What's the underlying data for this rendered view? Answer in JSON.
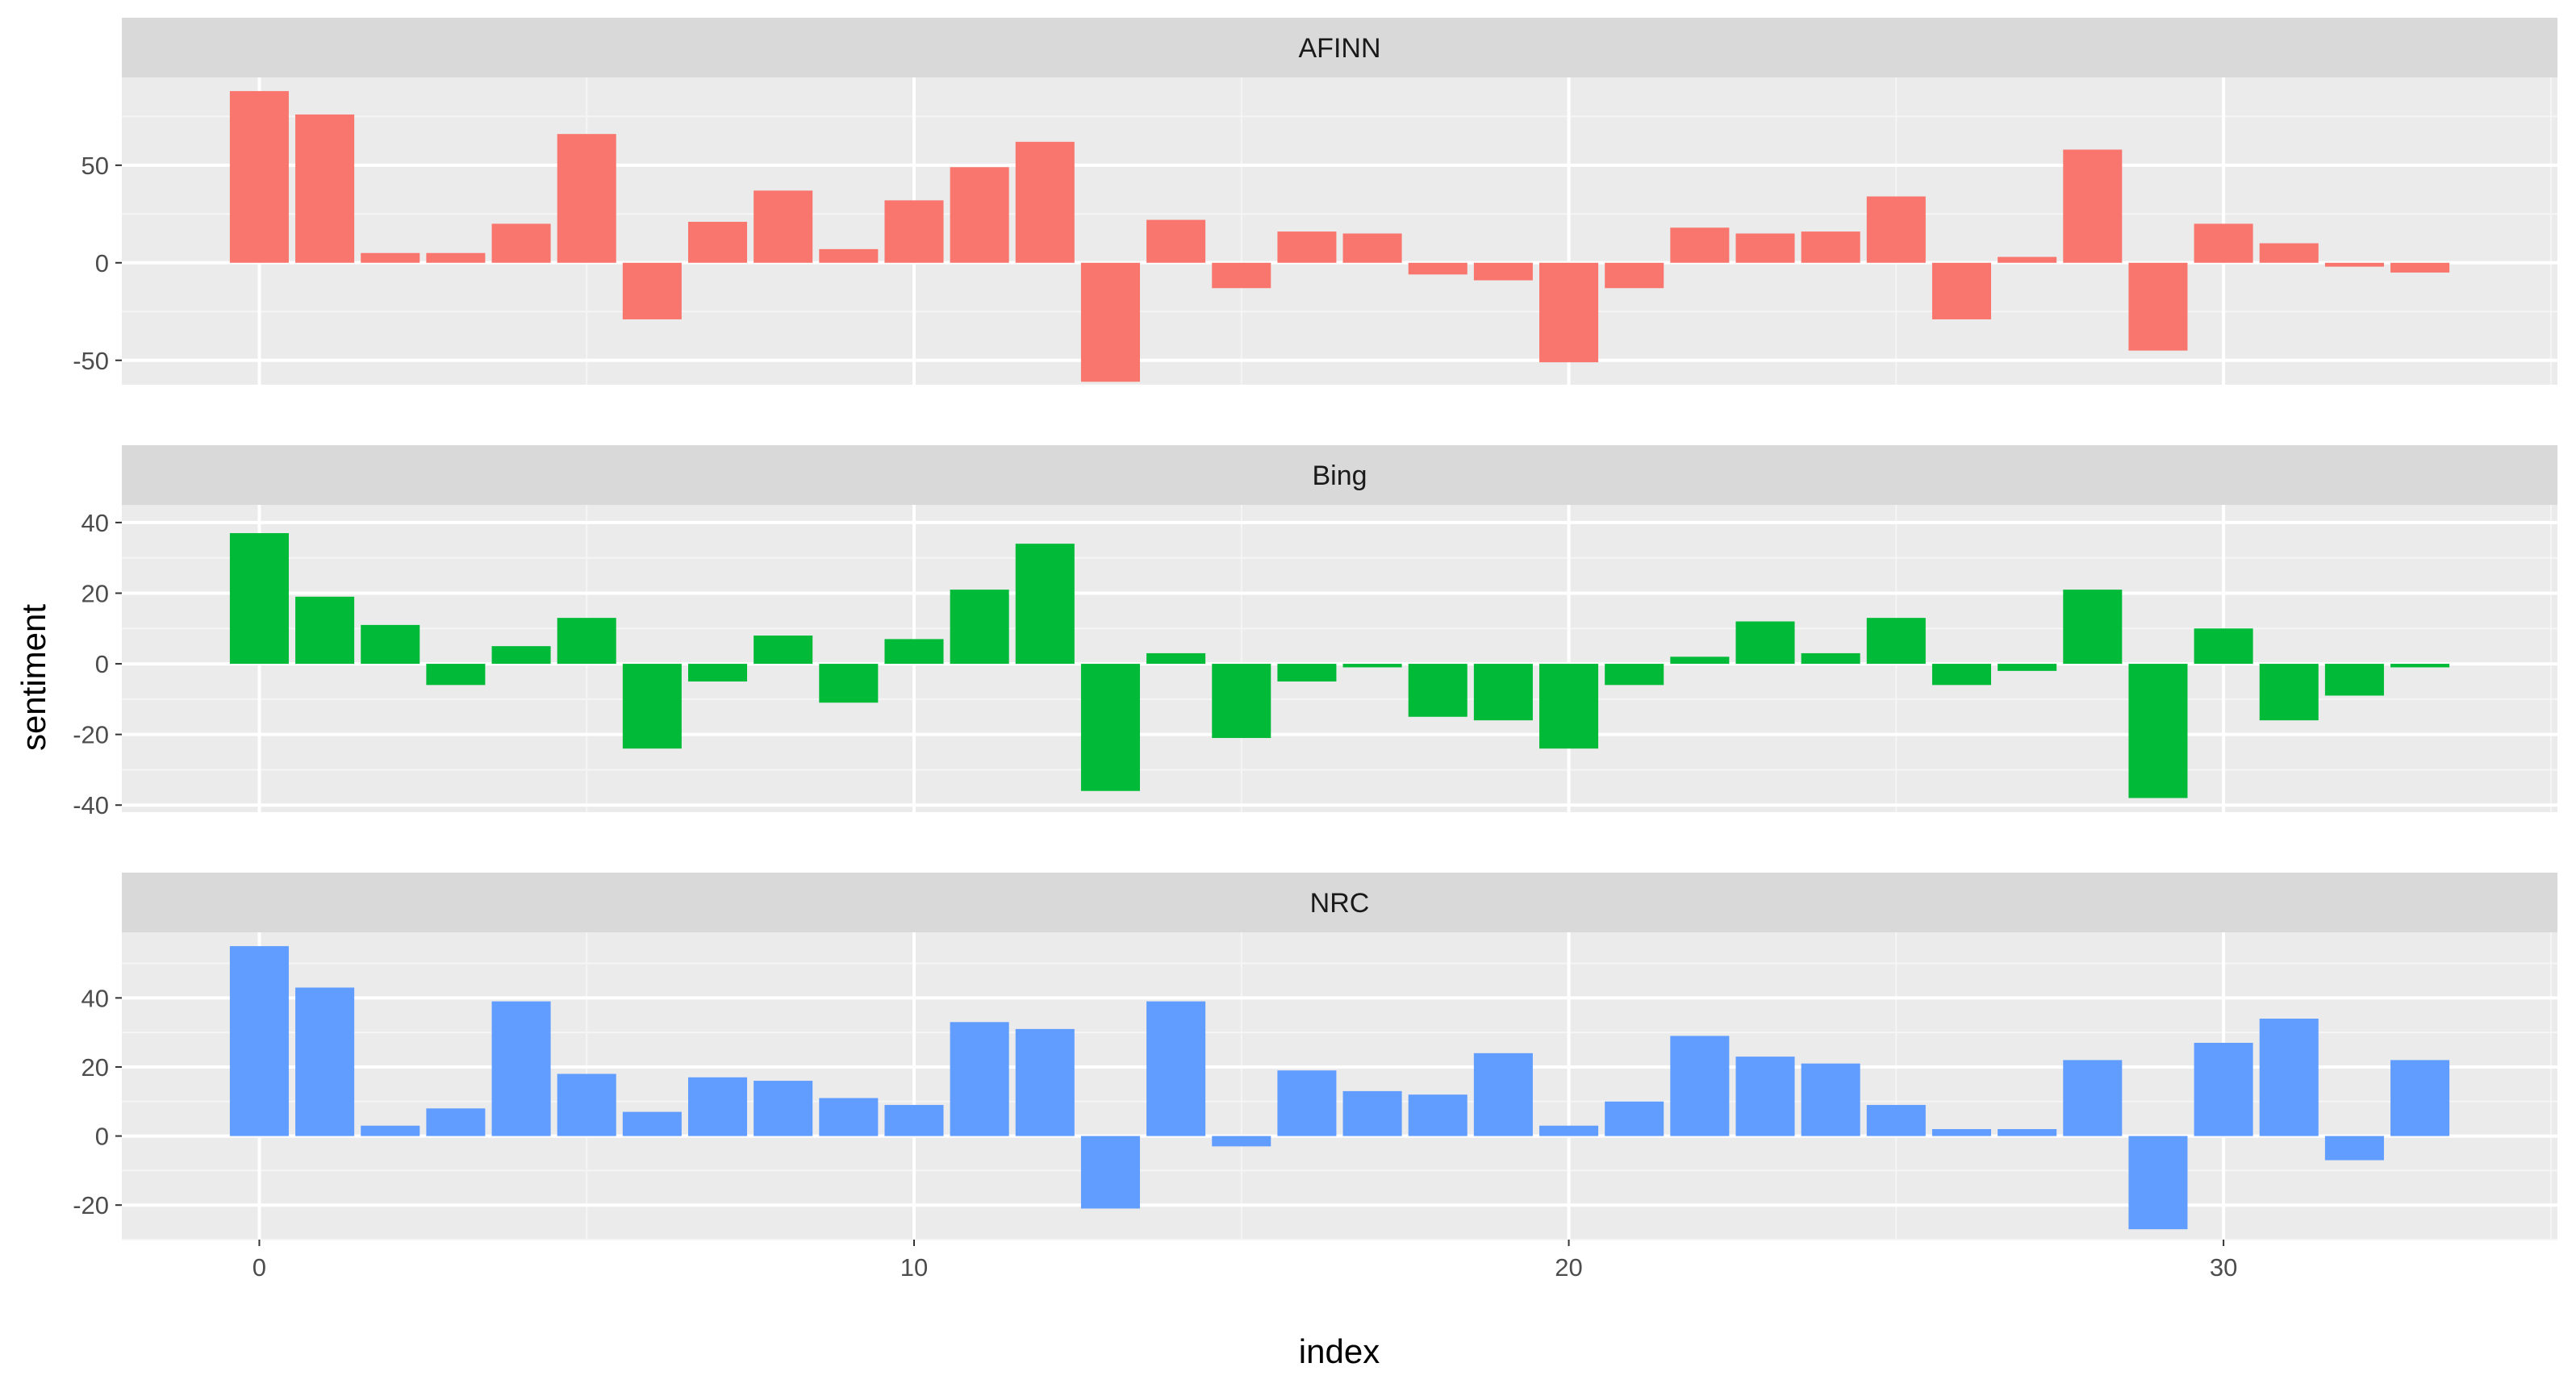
{
  "chart_data": {
    "type": "bar",
    "xlabel": "index",
    "ylabel": "sentiment",
    "x_ticks": [
      0,
      10,
      20,
      30
    ],
    "xlim": [
      -2.1,
      35.1
    ],
    "grid": true,
    "legend": "none",
    "facet_layout": "stacked-vertical",
    "index": [
      0,
      1,
      2,
      3,
      4,
      5,
      6,
      7,
      8,
      9,
      10,
      11,
      12,
      13,
      14,
      15,
      16,
      17,
      18,
      19,
      20,
      21,
      22,
      23,
      24,
      25,
      26,
      27,
      28,
      29,
      30,
      31,
      32,
      33
    ],
    "panels": [
      {
        "name": "AFINN",
        "color": "#F8766D",
        "ylim": [
          -62.5,
          95
        ],
        "y_ticks": [
          -50,
          0,
          50
        ],
        "y_tick_labels": [
          "-50",
          "0",
          "50"
        ],
        "values": [
          88,
          76,
          5,
          5,
          20,
          66,
          -29,
          21,
          37,
          7,
          32,
          49,
          62,
          -61,
          22,
          -13,
          16,
          15,
          -6,
          -9,
          -51,
          -13,
          18,
          15,
          16,
          34,
          -29,
          3,
          58,
          -45,
          20,
          10,
          -2,
          -5
        ]
      },
      {
        "name": "Bing",
        "color": "#00BA38",
        "ylim": [
          -42,
          45
        ],
        "y_ticks": [
          -40,
          -20,
          0,
          20,
          40
        ],
        "y_tick_labels": [
          "-40",
          "-20",
          "0",
          "20",
          "40"
        ],
        "values": [
          37,
          19,
          11,
          -6,
          5,
          13,
          -24,
          -5,
          8,
          -11,
          7,
          21,
          34,
          -36,
          3,
          -21,
          -5,
          -1,
          -15,
          -16,
          -24,
          -6,
          2,
          12,
          3,
          13,
          -6,
          -2,
          21,
          -38,
          10,
          -16,
          -9,
          -1
        ]
      },
      {
        "name": "NRC",
        "color": "#619CFF",
        "ylim": [
          -30,
          59
        ],
        "y_ticks": [
          -20,
          0,
          20,
          40
        ],
        "y_tick_labels": [
          "-20",
          "0",
          "20",
          "40"
        ],
        "values": [
          55,
          43,
          3,
          8,
          39,
          18,
          7,
          17,
          16,
          11,
          9,
          33,
          31,
          -21,
          39,
          -3,
          19,
          13,
          12,
          24,
          3,
          10,
          29,
          23,
          21,
          9,
          2,
          2,
          22,
          -27,
          27,
          34,
          -7,
          22
        ]
      }
    ]
  }
}
